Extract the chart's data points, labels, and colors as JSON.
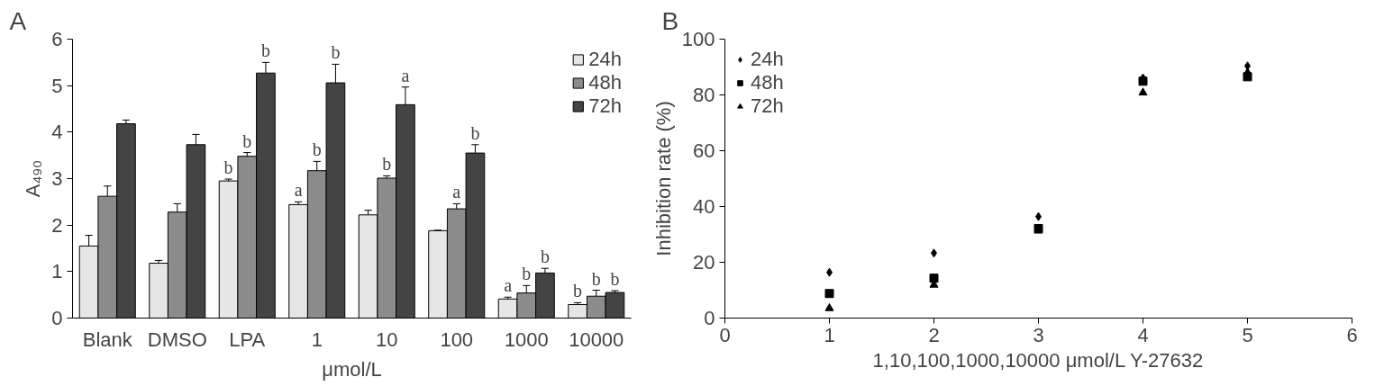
{
  "chart_data": [
    {
      "type": "bar",
      "title": "A",
      "ylabel": "A₄₉₀",
      "xlabel": "μmol/L",
      "categories": [
        "Blank",
        "DMSO",
        "LPA",
        "1",
        "10",
        "100",
        "1000",
        "10000"
      ],
      "ylim": [
        0,
        6
      ],
      "yticks": [
        0,
        1,
        2,
        3,
        4,
        5,
        6
      ],
      "grid": false,
      "legend": "top right",
      "series": [
        {
          "name": "24h",
          "color": "#e6e6e6",
          "values": [
            1.55,
            1.18,
            2.95,
            2.44,
            2.22,
            1.88,
            0.41,
            0.29
          ],
          "errors": [
            0.23,
            0.06,
            0.04,
            0.06,
            0.1,
            0.01,
            0.04,
            0.04
          ],
          "value_labels": [
            null,
            null,
            "b",
            "a",
            null,
            null,
            "a",
            "b"
          ]
        },
        {
          "name": "48h",
          "color": "#8c8c8c",
          "values": [
            2.62,
            2.28,
            3.48,
            3.17,
            3.01,
            2.35,
            0.54,
            0.47
          ],
          "errors": [
            0.22,
            0.18,
            0.08,
            0.2,
            0.05,
            0.11,
            0.16,
            0.13
          ],
          "value_labels": [
            null,
            null,
            "b",
            "b",
            "b",
            "a",
            "b",
            "b"
          ]
        },
        {
          "name": "72h",
          "color": "#444444",
          "values": [
            4.18,
            3.73,
            5.27,
            5.06,
            4.59,
            3.55,
            0.97,
            0.55
          ],
          "errors": [
            0.08,
            0.22,
            0.23,
            0.4,
            0.38,
            0.18,
            0.1,
            0.04
          ],
          "value_labels": [
            null,
            null,
            "b",
            "b",
            "a",
            "b",
            "b",
            "b"
          ]
        }
      ]
    },
    {
      "type": "scatter",
      "title": "B",
      "ylabel": "Inhibition rate (%)",
      "xlabel": "1,10,100,1000,10000 μmol/L Y-27632",
      "x": [
        1,
        2,
        3,
        4,
        5
      ],
      "xlim": [
        0,
        6
      ],
      "xticks": [
        0,
        1,
        2,
        3,
        4,
        5,
        6
      ],
      "ylim": [
        0,
        100
      ],
      "yticks": [
        0,
        20,
        40,
        60,
        80,
        100
      ],
      "grid": false,
      "legend": "top left",
      "series": [
        {
          "name": "24h",
          "color": "#000000",
          "marker": "diamond",
          "values": [
            16.4,
            23.3,
            36.4,
            86.1,
            90.4
          ]
        },
        {
          "name": "48h",
          "color": "#000000",
          "marker": "square",
          "values": [
            8.8,
            14.3,
            32.1,
            84.9,
            86.5
          ]
        },
        {
          "name": "72h",
          "color": "#000000",
          "marker": "triangle",
          "values": [
            3.5,
            11.9,
            31.3,
            80.8,
            88
          ]
        }
      ]
    }
  ]
}
